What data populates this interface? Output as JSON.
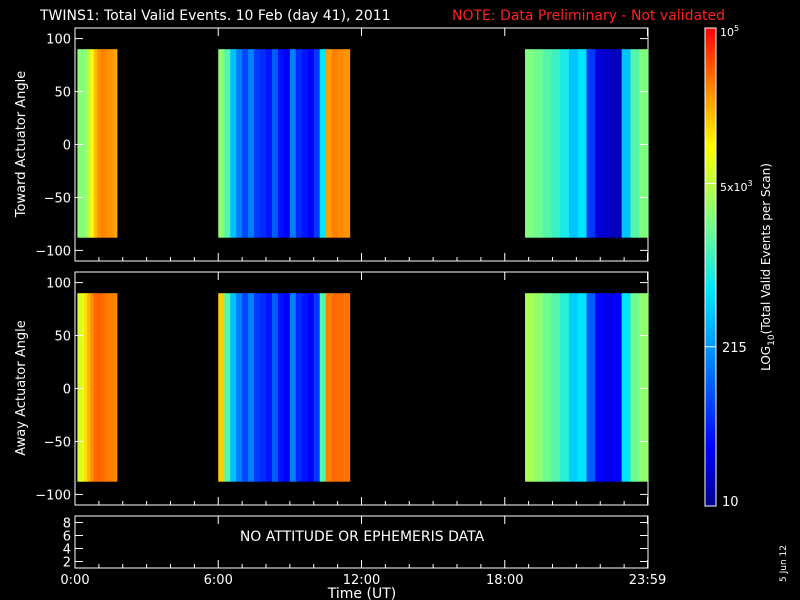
{
  "header": {
    "title": "TWINS1: Total Valid Events. 10 Feb (day  41), 2011",
    "note": "NOTE: Data Preliminary - Not validated",
    "note_color": "#ff2020"
  },
  "chart_data": [
    {
      "type": "heatmap",
      "panel": "toward",
      "ylabel": "Toward Actuator Angle",
      "ylim": [
        -110,
        110
      ],
      "yticks": [
        100,
        50,
        0,
        -50,
        -100
      ],
      "xlim": [
        0,
        24
      ],
      "data_ylim": [
        -88,
        90
      ],
      "data_blocks": [
        {
          "start_hour": 0.1,
          "end_hour": 1.75,
          "profile": [
            0.62,
            0.6,
            0.62,
            0.68,
            0.75,
            0.82,
            0.86,
            0.88,
            0.87,
            0.86,
            0.86,
            0.84
          ]
        },
        {
          "start_hour": 6.0,
          "end_hour": 11.5,
          "profile": [
            0.62,
            0.55,
            0.4,
            0.3,
            0.22,
            0.3,
            0.2,
            0.18,
            0.15,
            0.25,
            0.14,
            0.12,
            0.3,
            0.18,
            0.15,
            0.12,
            0.2,
            0.45,
            0.85,
            0.88,
            0.87,
            0.86
          ]
        },
        {
          "start_hour": 18.85,
          "end_hour": 24.0,
          "profile": [
            0.6,
            0.58,
            0.55,
            0.52,
            0.48,
            0.4,
            0.45,
            0.2,
            0.08,
            0.06,
            0.05,
            0.4,
            0.55,
            0.6
          ]
        }
      ]
    },
    {
      "type": "heatmap",
      "panel": "away",
      "ylabel": "Away Actuator Angle",
      "ylim": [
        -110,
        110
      ],
      "yticks": [
        100,
        50,
        0,
        -50,
        -100
      ],
      "xlim": [
        0,
        24
      ],
      "data_ylim": [
        -88,
        90
      ],
      "data_blocks": [
        {
          "start_hour": 0.1,
          "end_hour": 1.75,
          "profile": [
            0.7,
            0.72,
            0.78,
            0.83,
            0.87,
            0.9,
            0.91,
            0.9,
            0.89,
            0.88,
            0.88,
            0.87
          ]
        },
        {
          "start_hour": 6.0,
          "end_hour": 11.5,
          "profile": [
            0.8,
            0.55,
            0.4,
            0.3,
            0.22,
            0.3,
            0.2,
            0.18,
            0.15,
            0.25,
            0.14,
            0.12,
            0.3,
            0.18,
            0.15,
            0.12,
            0.2,
            0.55,
            0.88,
            0.9,
            0.9,
            0.89
          ]
        },
        {
          "start_hour": 18.85,
          "end_hour": 24.0,
          "profile": [
            0.65,
            0.62,
            0.58,
            0.55,
            0.5,
            0.42,
            0.45,
            0.25,
            0.12,
            0.1,
            0.12,
            0.45,
            0.58,
            0.62
          ]
        }
      ]
    }
  ],
  "bottom_panel": {
    "message": "NO ATTITUDE OR EPHEMERIS DATA",
    "yticks": [
      8,
      6,
      4,
      2
    ],
    "ylim": [
      1,
      9
    ]
  },
  "xaxis": {
    "tick_labels": [
      "0:00",
      "6:00",
      "12:00",
      "18:00",
      "23:59"
    ],
    "tick_hours": [
      0,
      6,
      12,
      18,
      23.98
    ],
    "label": "Time (UT)"
  },
  "colorbar": {
    "label": "LOG",
    "label_sub": "10",
    "label_rest": "(Total Valid Events per Scan)",
    "top_label": "10",
    "top_label_sup": "5",
    "mid_label": "5x10",
    "mid_label_sup": "3",
    "low_label": "215",
    "bottom_label": "10",
    "range_log": [
      1,
      5
    ],
    "tick_values": [
      100000,
      5000,
      215,
      10
    ]
  },
  "footer": {
    "date_stamp": "5 Jun 12"
  }
}
